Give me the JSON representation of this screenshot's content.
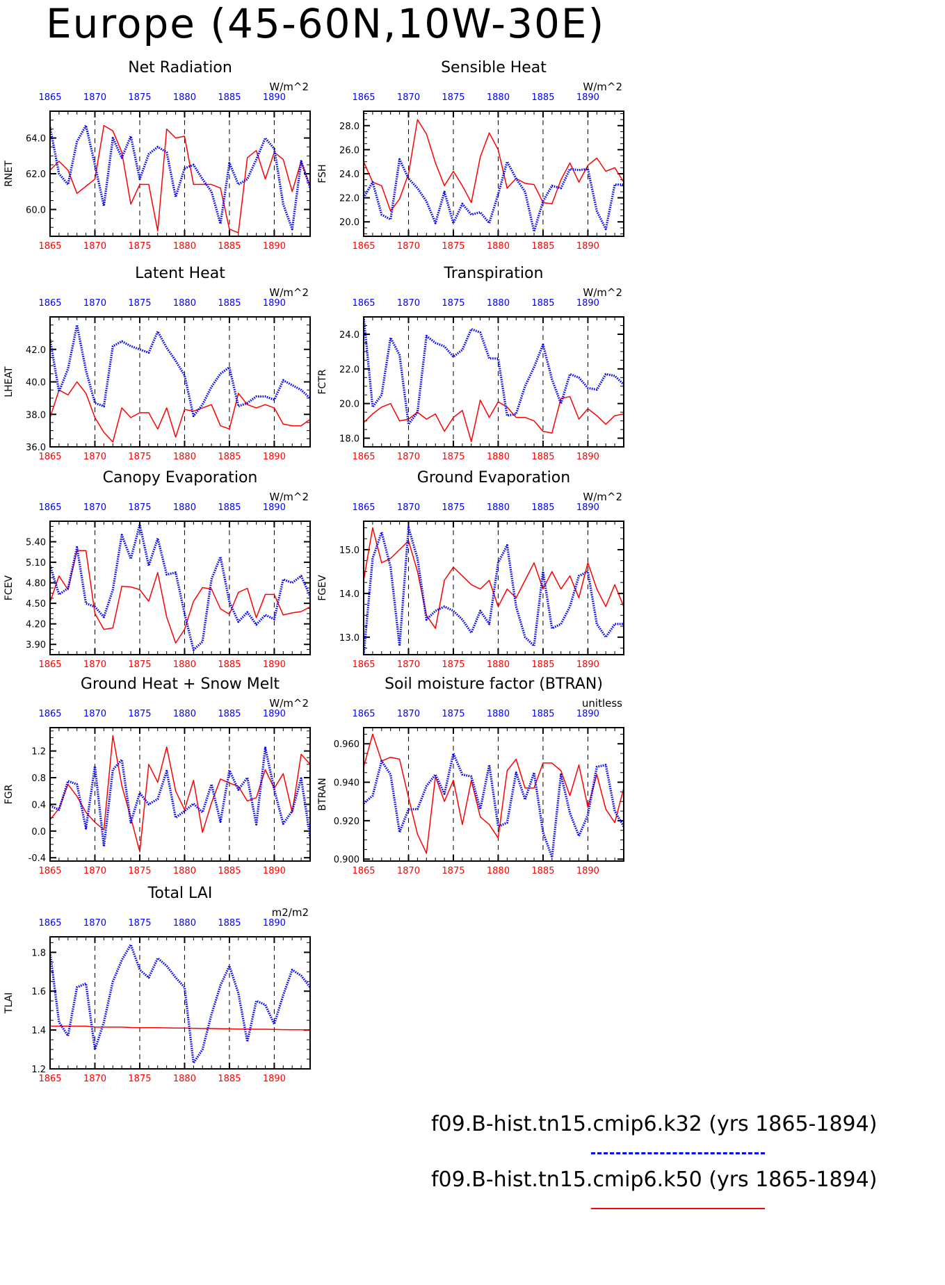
{
  "figure": {
    "title": "Europe (45-60N,10W-30E)"
  },
  "legend": {
    "entries": [
      {
        "label": "f09.B-hist.tn15.cmip6.k32 (yrs 1865-1894)",
        "color": "#0000ff",
        "style": "dashed"
      },
      {
        "label": "f09.B-hist.tn15.cmip6.k50 (yrs 1865-1894)",
        "color": "#ff0000",
        "style": "solid"
      }
    ]
  },
  "chart_data": [
    {
      "type": "line",
      "title": "Net Radiation",
      "ylabel": "RNET",
      "units": "W/m^2",
      "xlim": [
        1865,
        1894
      ],
      "ylim": [
        58.5,
        65.5
      ],
      "yticks": [
        60.0,
        62.0,
        64.0
      ],
      "ytick_labels": [
        "60.0",
        "62.0",
        "64.0"
      ],
      "xticks": [
        1865,
        1870,
        1875,
        1880,
        1885,
        1890
      ],
      "grid": "vertical dashed at 1870, 1875, 1880, 1885, 1890",
      "series": [
        {
          "color": "#0000ff",
          "style": "dotted",
          "x_start": 1865,
          "values": [
            64.6,
            62.0,
            61.4,
            63.8,
            64.7,
            62.5,
            60.2,
            64.0,
            62.9,
            64.1,
            61.7,
            63.1,
            63.5,
            63.2,
            60.7,
            62.3,
            62.5,
            61.7,
            61.0,
            59.2,
            62.6,
            61.4,
            61.7,
            62.8,
            64.0,
            63.4,
            60.3,
            58.9,
            62.7,
            61.2
          ]
        },
        {
          "color": "#ff0000",
          "style": "solid",
          "x_start": 1865,
          "values": [
            62.2,
            62.7,
            62.2,
            60.9,
            61.3,
            61.7,
            64.7,
            64.4,
            63.2,
            60.3,
            61.4,
            61.4,
            58.8,
            64.5,
            64.0,
            64.1,
            61.4,
            61.4,
            61.4,
            61.2,
            58.9,
            58.7,
            62.9,
            63.3,
            61.7,
            63.2,
            62.8,
            61.0,
            62.7,
            61.3
          ]
        }
      ]
    },
    {
      "type": "line",
      "title": "Sensible Heat",
      "ylabel": "FSH",
      "units": "W/m^2",
      "xlim": [
        1865,
        1894
      ],
      "ylim": [
        18.8,
        29.2
      ],
      "yticks": [
        20.0,
        22.0,
        24.0,
        26.0,
        28.0
      ],
      "ytick_labels": [
        "20.0",
        "22.0",
        "24.0",
        "26.0",
        "28.0"
      ],
      "xticks": [
        1865,
        1870,
        1875,
        1880,
        1885,
        1890
      ],
      "grid": "vertical dashed at 1870, 1875, 1880, 1885, 1890",
      "series": [
        {
          "color": "#0000ff",
          "style": "dotted",
          "x_start": 1865,
          "values": [
            22.0,
            23.3,
            20.6,
            20.2,
            25.2,
            23.6,
            22.8,
            21.7,
            19.9,
            22.5,
            19.9,
            21.5,
            20.6,
            20.8,
            19.9,
            22.3,
            25.0,
            23.6,
            22.5,
            19.2,
            21.7,
            23.0,
            22.8,
            24.4,
            24.3,
            24.4,
            20.9,
            19.4,
            23.1,
            23.1
          ]
        },
        {
          "color": "#ff0000",
          "style": "solid",
          "x_start": 1865,
          "values": [
            25.0,
            23.3,
            23.0,
            20.9,
            21.9,
            24.0,
            28.5,
            27.3,
            24.9,
            23.0,
            24.2,
            23.0,
            21.6,
            25.4,
            27.4,
            26.0,
            22.8,
            23.6,
            23.2,
            23.1,
            21.6,
            21.5,
            23.5,
            24.9,
            23.3,
            24.7,
            25.3,
            24.2,
            24.5,
            23.3
          ]
        }
      ]
    },
    {
      "type": "line",
      "title": "Latent Heat",
      "ylabel": "LHEAT",
      "units": "W/m^2",
      "xlim": [
        1865,
        1894
      ],
      "ylim": [
        36.0,
        44.0
      ],
      "yticks": [
        36.0,
        38.0,
        40.0,
        42.0
      ],
      "ytick_labels": [
        "36.0",
        "38.0",
        "40.0",
        "42.0"
      ],
      "xticks": [
        1865,
        1870,
        1875,
        1880,
        1885,
        1890
      ],
      "grid": "vertical dashed at 1870, 1875, 1880, 1885, 1890",
      "series": [
        {
          "color": "#0000ff",
          "style": "dotted",
          "x_start": 1865,
          "values": [
            42.6,
            39.4,
            40.8,
            43.5,
            40.7,
            38.7,
            38.5,
            42.2,
            42.5,
            42.2,
            42.0,
            41.8,
            43.1,
            42.1,
            41.3,
            40.4,
            37.9,
            38.6,
            39.7,
            40.5,
            40.9,
            38.5,
            38.7,
            39.1,
            39.1,
            38.9,
            40.1,
            39.8,
            39.5,
            39.0
          ]
        },
        {
          "color": "#ff0000",
          "style": "solid",
          "x_start": 1865,
          "values": [
            37.8,
            39.5,
            39.2,
            40.0,
            39.3,
            37.8,
            36.9,
            36.3,
            38.4,
            37.8,
            38.1,
            38.1,
            37.1,
            38.4,
            36.6,
            38.3,
            38.2,
            38.4,
            38.6,
            37.3,
            37.1,
            39.3,
            38.6,
            38.4,
            38.6,
            38.4,
            37.4,
            37.3,
            37.3,
            37.7
          ]
        }
      ]
    },
    {
      "type": "line",
      "title": "Transpiration",
      "ylabel": "FCTR",
      "units": "W/m^2",
      "xlim": [
        1865,
        1894
      ],
      "ylim": [
        17.5,
        25.0
      ],
      "yticks": [
        18.0,
        20.0,
        22.0,
        24.0
      ],
      "ytick_labels": [
        "18.0",
        "20.0",
        "22.0",
        "24.0"
      ],
      "xticks": [
        1865,
        1870,
        1875,
        1880,
        1885,
        1890
      ],
      "grid": "vertical dashed at 1870, 1875, 1880, 1885, 1890",
      "series": [
        {
          "color": "#0000ff",
          "style": "dotted",
          "x_start": 1865,
          "values": [
            25.0,
            19.8,
            20.5,
            23.8,
            22.8,
            18.8,
            19.5,
            23.9,
            23.5,
            23.3,
            22.7,
            23.1,
            24.3,
            24.1,
            22.6,
            22.6,
            19.3,
            19.4,
            21.0,
            22.1,
            23.4,
            21.4,
            20.0,
            21.7,
            21.5,
            20.9,
            20.8,
            21.7,
            21.6,
            21.1
          ]
        },
        {
          "color": "#ff0000",
          "style": "solid",
          "x_start": 1865,
          "values": [
            18.9,
            19.4,
            19.8,
            20.0,
            19.0,
            19.1,
            19.5,
            19.1,
            19.4,
            18.4,
            19.2,
            19.6,
            17.8,
            20.2,
            19.2,
            20.1,
            19.8,
            19.2,
            19.2,
            19.0,
            18.4,
            18.3,
            20.3,
            20.4,
            19.1,
            19.7,
            19.3,
            18.8,
            19.3,
            19.4
          ]
        }
      ]
    },
    {
      "type": "line",
      "title": "Canopy Evaporation",
      "ylabel": "FCEV",
      "units": "W/m^2",
      "xlim": [
        1865,
        1894
      ],
      "ylim": [
        3.75,
        5.7
      ],
      "yticks": [
        3.9,
        4.2,
        4.5,
        4.8,
        5.1,
        5.4
      ],
      "ytick_labels": [
        "3.90",
        "4.20",
        "4.50",
        "4.80",
        "5.10",
        "5.40"
      ],
      "xticks": [
        1865,
        1870,
        1875,
        1880,
        1885,
        1890
      ],
      "grid": "vertical dashed at 1870, 1875, 1880, 1885, 1890",
      "series": [
        {
          "color": "#0000ff",
          "style": "dotted",
          "x_start": 1865,
          "values": [
            5.05,
            4.63,
            4.72,
            5.32,
            4.5,
            4.45,
            4.3,
            4.7,
            5.5,
            5.15,
            5.65,
            5.05,
            5.45,
            4.92,
            4.95,
            4.35,
            3.82,
            3.94,
            4.85,
            5.18,
            4.52,
            4.23,
            4.37,
            4.19,
            4.33,
            4.27,
            4.85,
            4.8,
            4.9,
            4.6
          ]
        },
        {
          "color": "#ff0000",
          "style": "solid",
          "x_start": 1865,
          "values": [
            4.52,
            4.9,
            4.7,
            5.27,
            5.27,
            4.35,
            4.12,
            4.14,
            4.75,
            4.74,
            4.7,
            4.53,
            4.95,
            4.3,
            3.92,
            4.12,
            4.53,
            4.73,
            4.71,
            4.42,
            4.34,
            4.66,
            4.72,
            4.29,
            4.63,
            4.63,
            4.33,
            4.36,
            4.38,
            4.45
          ]
        }
      ]
    },
    {
      "type": "line",
      "title": "Ground Evaporation",
      "ylabel": "FGEV",
      "units": "W/m^2",
      "xlim": [
        1865,
        1894
      ],
      "ylim": [
        12.6,
        15.65
      ],
      "yticks": [
        13.0,
        14.0,
        15.0
      ],
      "ytick_labels": [
        "13.0",
        "14.0",
        "15.0"
      ],
      "xticks": [
        1865,
        1870,
        1875,
        1880,
        1885,
        1890
      ],
      "grid": "vertical dashed at 1870, 1875, 1880, 1885, 1890",
      "series": [
        {
          "color": "#0000ff",
          "style": "dotted",
          "x_start": 1865,
          "values": [
            12.6,
            14.8,
            15.4,
            14.6,
            12.8,
            15.5,
            14.8,
            13.4,
            13.6,
            13.7,
            13.6,
            13.4,
            13.1,
            13.6,
            13.3,
            14.7,
            15.1,
            13.7,
            13.0,
            12.8,
            14.5,
            13.2,
            13.3,
            13.7,
            14.4,
            14.5,
            13.3,
            13.0,
            13.3,
            13.3
          ]
        },
        {
          "color": "#ff0000",
          "style": "solid",
          "x_start": 1865,
          "values": [
            14.3,
            15.5,
            14.7,
            14.8,
            15.0,
            15.2,
            14.5,
            13.5,
            13.2,
            14.3,
            14.6,
            14.4,
            14.2,
            14.1,
            14.3,
            13.7,
            14.1,
            13.9,
            14.3,
            14.7,
            14.1,
            14.5,
            14.1,
            14.4,
            13.9,
            14.7,
            14.1,
            13.7,
            14.2,
            13.7
          ]
        }
      ]
    },
    {
      "type": "line",
      "title": "Ground Heat + Snow Melt",
      "ylabel": "FGR",
      "units": "W/m^2",
      "xlim": [
        1865,
        1894
      ],
      "ylim": [
        -0.45,
        1.55
      ],
      "yticks": [
        -0.4,
        0.0,
        0.4,
        0.8,
        1.2
      ],
      "ytick_labels": [
        "-0.4",
        "0.0",
        "0.4",
        "0.8",
        "1.2"
      ],
      "xticks": [
        1865,
        1870,
        1875,
        1880,
        1885,
        1890
      ],
      "grid": "vertical dashed at 1870, 1875, 1880, 1885, 1890",
      "series": [
        {
          "color": "#0000ff",
          "style": "dotted",
          "x_start": 1865,
          "values": [
            0.38,
            0.32,
            0.75,
            0.7,
            0.04,
            0.97,
            -0.23,
            0.92,
            1.07,
            0.13,
            0.57,
            0.4,
            0.48,
            0.9,
            0.2,
            0.3,
            0.41,
            0.28,
            0.7,
            0.14,
            0.91,
            0.62,
            0.8,
            0.1,
            1.25,
            0.62,
            0.11,
            0.3,
            0.79,
            -0.09
          ]
        },
        {
          "color": "#ff0000",
          "style": "solid",
          "x_start": 1865,
          "values": [
            0.17,
            0.34,
            0.7,
            0.52,
            0.28,
            0.13,
            0.02,
            1.43,
            0.68,
            0.2,
            -0.31,
            1.0,
            0.73,
            1.26,
            0.6,
            0.32,
            0.76,
            -0.02,
            0.42,
            0.78,
            0.72,
            0.67,
            0.45,
            0.5,
            0.92,
            0.64,
            0.86,
            0.28,
            1.15,
            1.0
          ]
        }
      ]
    },
    {
      "type": "line",
      "title": "Soil moisture factor (BTRAN)",
      "ylabel": "BTRAN",
      "units": "unitless",
      "xlim": [
        1865,
        1894
      ],
      "ylim": [
        0.899,
        0.9684
      ],
      "yticks": [
        0.9,
        0.92,
        0.94,
        0.96
      ],
      "ytick_labels": [
        "0.900",
        "0.920",
        "0.940",
        "0.960"
      ],
      "xticks": [
        1865,
        1870,
        1875,
        1880,
        1885,
        1890
      ],
      "grid": "vertical dashed at 1870, 1875, 1880, 1885, 1890",
      "series": [
        {
          "color": "#0000ff",
          "style": "dotted",
          "x_start": 1865,
          "values": [
            0.929,
            0.933,
            0.951,
            0.944,
            0.914,
            0.926,
            0.926,
            0.938,
            0.944,
            0.934,
            0.955,
            0.944,
            0.943,
            0.926,
            0.949,
            0.917,
            0.919,
            0.945,
            0.931,
            0.945,
            0.914,
            0.901,
            0.944,
            0.924,
            0.912,
            0.923,
            0.948,
            0.949,
            0.925,
            0.917
          ]
        },
        {
          "color": "#ff0000",
          "style": "solid",
          "x_start": 1865,
          "values": [
            0.948,
            0.965,
            0.951,
            0.953,
            0.952,
            0.932,
            0.913,
            0.903,
            0.943,
            0.93,
            0.941,
            0.918,
            0.941,
            0.922,
            0.918,
            0.911,
            0.946,
            0.952,
            0.937,
            0.937,
            0.95,
            0.95,
            0.946,
            0.933,
            0.949,
            0.927,
            0.944,
            0.926,
            0.919,
            0.937
          ]
        }
      ]
    },
    {
      "type": "line",
      "title": "Total LAI",
      "ylabel": "TLAI",
      "units": "m2/m2",
      "xlim": [
        1865,
        1894
      ],
      "ylim": [
        1.2,
        1.88
      ],
      "yticks": [
        1.2,
        1.4,
        1.6,
        1.8
      ],
      "ytick_labels": [
        "1.2",
        "1.4",
        "1.6",
        "1.8"
      ],
      "xticks": [
        1865,
        1870,
        1875,
        1880,
        1885,
        1890
      ],
      "grid": "vertical dashed at 1870, 1875, 1880, 1885, 1890",
      "series": [
        {
          "color": "#0000ff",
          "style": "dotted",
          "x_start": 1865,
          "values": [
            1.8,
            1.44,
            1.37,
            1.62,
            1.64,
            1.3,
            1.44,
            1.65,
            1.76,
            1.84,
            1.71,
            1.67,
            1.77,
            1.73,
            1.67,
            1.62,
            1.23,
            1.3,
            1.48,
            1.63,
            1.73,
            1.59,
            1.34,
            1.55,
            1.53,
            1.43,
            1.58,
            1.71,
            1.68,
            1.62
          ]
        },
        {
          "color": "#ff0000",
          "style": "solid",
          "x_start": 1865,
          "values": [
            1.42,
            1.42,
            1.42,
            1.42,
            1.42,
            1.415,
            1.415,
            1.415,
            1.415,
            1.413,
            1.412,
            1.412,
            1.412,
            1.411,
            1.41,
            1.41,
            1.409,
            1.408,
            1.408,
            1.407,
            1.406,
            1.405,
            1.405,
            1.404,
            1.404,
            1.403,
            1.402,
            1.401,
            1.401,
            1.4
          ]
        }
      ]
    }
  ]
}
